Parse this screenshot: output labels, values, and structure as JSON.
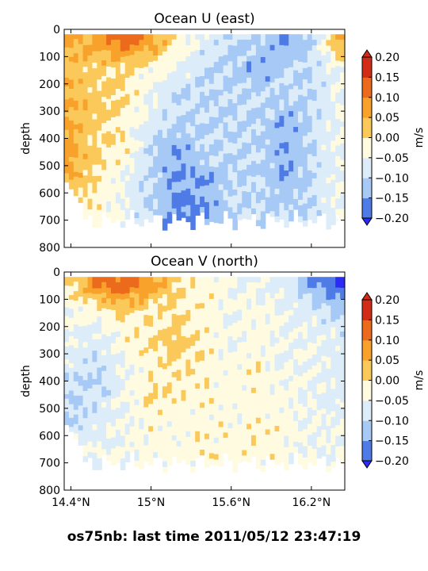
{
  "figure": {
    "suptitle": "os75nb: last time 2011/05/12 23:47:19"
  },
  "colorscale": {
    "levels": [
      -0.2,
      -0.15,
      -0.1,
      -0.05,
      0.0,
      0.05,
      0.1,
      0.15,
      0.2
    ],
    "tick_labels": [
      "0.20",
      "0.15",
      "0.10",
      "0.05",
      "0.00",
      "−0.05",
      "−0.10",
      "−0.15",
      "−0.20"
    ],
    "colors": [
      "#2b2bf5",
      "#4f7be6",
      "#a6c9f5",
      "#dcecf9",
      "#fffbe0",
      "#fbc95a",
      "#f8a22c",
      "#ec6a1c",
      "#d22b17"
    ],
    "unit_label": "m/s"
  },
  "chart_data": [
    {
      "type": "heatmap",
      "subtype": "filled-contour",
      "title": "Ocean U (east)",
      "xlabel": "",
      "ylabel": "depth",
      "x_ticks": [],
      "y_ticks": [
        "0",
        "100",
        "200",
        "300",
        "400",
        "500",
        "600",
        "700",
        "800"
      ],
      "ylim": [
        800,
        0
      ],
      "xlim": [
        "14.35°N",
        "16.45°N"
      ],
      "colorbar_label": "m/s",
      "latitudes": [
        14.4,
        14.6,
        14.8,
        15.0,
        15.2,
        15.4,
        15.6,
        15.8,
        16.0,
        16.2,
        16.4
      ],
      "depths": [
        50,
        150,
        250,
        350,
        450,
        550,
        650
      ],
      "values_m_per_s": [
        [
          0.1,
          0.12,
          0.18,
          0.12,
          0.03,
          -0.02,
          -0.05,
          -0.05,
          -0.1,
          -0.05,
          0.1
        ],
        [
          0.08,
          0.06,
          0.05,
          0.02,
          0.0,
          -0.05,
          -0.05,
          -0.1,
          -0.05,
          -0.05,
          0.0
        ],
        [
          0.1,
          0.07,
          0.05,
          0.0,
          -0.05,
          -0.05,
          -0.05,
          -0.05,
          -0.05,
          -0.05,
          0.0
        ],
        [
          0.1,
          0.07,
          0.03,
          -0.02,
          -0.05,
          -0.05,
          -0.05,
          -0.05,
          -0.1,
          -0.05,
          0.0
        ],
        [
          0.12,
          0.05,
          0.03,
          -0.05,
          -0.1,
          -0.05,
          -0.05,
          -0.05,
          -0.1,
          -0.05,
          0.0
        ],
        [
          0.1,
          0.05,
          0.0,
          -0.05,
          -0.1,
          -0.1,
          -0.05,
          -0.05,
          -0.1,
          -0.05,
          0.0
        ],
        [
          0.03,
          0.03,
          0.0,
          -0.05,
          -0.12,
          -0.1,
          -0.05,
          -0.05,
          -0.05,
          -0.05,
          0.0
        ]
      ]
    },
    {
      "type": "heatmap",
      "subtype": "filled-contour",
      "title": "Ocean V (north)",
      "xlabel": "",
      "ylabel": "depth",
      "x_ticks": [
        "14.4°N",
        "15°N",
        "15.6°N",
        "16.2°N"
      ],
      "y_ticks": [
        "0",
        "100",
        "200",
        "300",
        "400",
        "500",
        "600",
        "700",
        "800"
      ],
      "ylim": [
        800,
        0
      ],
      "xlim": [
        "14.35°N",
        "16.45°N"
      ],
      "colorbar_label": "m/s",
      "latitudes": [
        14.4,
        14.6,
        14.8,
        15.0,
        15.2,
        15.4,
        15.6,
        15.8,
        16.0,
        16.2,
        16.4
      ],
      "depths": [
        50,
        150,
        250,
        350,
        450,
        550,
        650
      ],
      "values_m_per_s": [
        [
          0.05,
          0.15,
          0.18,
          0.12,
          0.05,
          0.03,
          0.0,
          0.0,
          -0.02,
          -0.1,
          -0.15
        ],
        [
          0.0,
          0.02,
          0.05,
          0.03,
          0.05,
          0.03,
          0.0,
          0.02,
          0.0,
          -0.02,
          -0.05
        ],
        [
          0.0,
          -0.02,
          0.02,
          0.05,
          0.08,
          0.03,
          0.0,
          0.02,
          0.0,
          0.0,
          -0.02
        ],
        [
          -0.02,
          -0.05,
          0.0,
          0.03,
          0.05,
          0.03,
          0.02,
          0.03,
          0.0,
          0.0,
          -0.02
        ],
        [
          -0.05,
          -0.05,
          0.0,
          0.05,
          0.03,
          0.03,
          0.02,
          0.03,
          0.02,
          0.0,
          -0.02
        ],
        [
          -0.05,
          -0.02,
          0.0,
          0.03,
          0.02,
          0.03,
          0.02,
          0.03,
          0.02,
          0.0,
          0.0
        ],
        [
          0.0,
          0.0,
          0.0,
          0.02,
          0.02,
          0.03,
          0.03,
          0.03,
          0.02,
          0.0,
          0.0
        ]
      ]
    }
  ]
}
